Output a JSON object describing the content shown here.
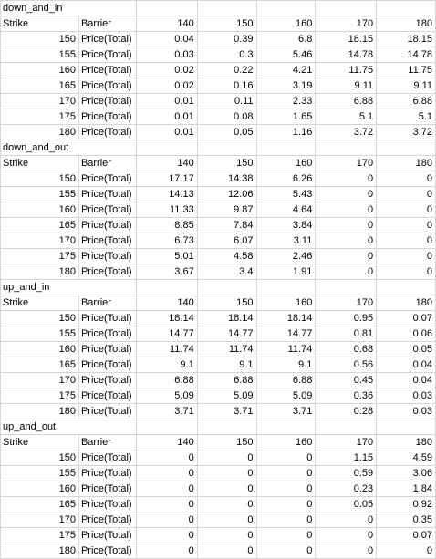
{
  "sections": [
    {
      "title": "down_and_in",
      "header": {
        "strike_label": "Strike",
        "barrier_label": "Barrier",
        "barriers": [
          "140",
          "150",
          "160",
          "170",
          "180"
        ]
      },
      "rows": [
        {
          "strike": "150",
          "label": "Price(Total)",
          "values": [
            "0.04",
            "0.39",
            "6.8",
            "18.15",
            "18.15"
          ]
        },
        {
          "strike": "155",
          "label": "Price(Total)",
          "values": [
            "0.03",
            "0.3",
            "5.46",
            "14.78",
            "14.78"
          ]
        },
        {
          "strike": "160",
          "label": "Price(Total)",
          "values": [
            "0.02",
            "0.22",
            "4.21",
            "11.75",
            "11.75"
          ]
        },
        {
          "strike": "165",
          "label": "Price(Total)",
          "values": [
            "0.02",
            "0.16",
            "3.19",
            "9.11",
            "9.11"
          ]
        },
        {
          "strike": "170",
          "label": "Price(Total)",
          "values": [
            "0.01",
            "0.11",
            "2.33",
            "6.88",
            "6.88"
          ]
        },
        {
          "strike": "175",
          "label": "Price(Total)",
          "values": [
            "0.01",
            "0.08",
            "1.65",
            "5.1",
            "5.1"
          ]
        },
        {
          "strike": "180",
          "label": "Price(Total)",
          "values": [
            "0.01",
            "0.05",
            "1.16",
            "3.72",
            "3.72"
          ]
        }
      ]
    },
    {
      "title": "down_and_out",
      "header": {
        "strike_label": "Strike",
        "barrier_label": "Barrier",
        "barriers": [
          "140",
          "150",
          "160",
          "170",
          "180"
        ]
      },
      "rows": [
        {
          "strike": "150",
          "label": "Price(Total)",
          "values": [
            "17.17",
            "14.38",
            "6.26",
            "0",
            "0"
          ]
        },
        {
          "strike": "155",
          "label": "Price(Total)",
          "values": [
            "14.13",
            "12.06",
            "5.43",
            "0",
            "0"
          ]
        },
        {
          "strike": "160",
          "label": "Price(Total)",
          "values": [
            "11.33",
            "9.87",
            "4.64",
            "0",
            "0"
          ]
        },
        {
          "strike": "165",
          "label": "Price(Total)",
          "values": [
            "8.85",
            "7.84",
            "3.84",
            "0",
            "0"
          ]
        },
        {
          "strike": "170",
          "label": "Price(Total)",
          "values": [
            "6.73",
            "6.07",
            "3.11",
            "0",
            "0"
          ]
        },
        {
          "strike": "175",
          "label": "Price(Total)",
          "values": [
            "5.01",
            "4.58",
            "2.46",
            "0",
            "0"
          ]
        },
        {
          "strike": "180",
          "label": "Price(Total)",
          "values": [
            "3.67",
            "3.4",
            "1.91",
            "0",
            "0"
          ]
        }
      ]
    },
    {
      "title": "up_and_in",
      "header": {
        "strike_label": "Strike",
        "barrier_label": "Barrier",
        "barriers": [
          "140",
          "150",
          "160",
          "170",
          "180"
        ]
      },
      "rows": [
        {
          "strike": "150",
          "label": "Price(Total)",
          "values": [
            "18.14",
            "18.14",
            "18.14",
            "0.95",
            "0.07"
          ]
        },
        {
          "strike": "155",
          "label": "Price(Total)",
          "values": [
            "14.77",
            "14.77",
            "14.77",
            "0.81",
            "0.06"
          ]
        },
        {
          "strike": "160",
          "label": "Price(Total)",
          "values": [
            "11.74",
            "11.74",
            "11.74",
            "0.68",
            "0.05"
          ]
        },
        {
          "strike": "165",
          "label": "Price(Total)",
          "values": [
            "9.1",
            "9.1",
            "9.1",
            "0.56",
            "0.04"
          ]
        },
        {
          "strike": "170",
          "label": "Price(Total)",
          "values": [
            "6.88",
            "6.88",
            "6.88",
            "0.45",
            "0.04"
          ]
        },
        {
          "strike": "175",
          "label": "Price(Total)",
          "values": [
            "5.09",
            "5.09",
            "5.09",
            "0.36",
            "0.03"
          ]
        },
        {
          "strike": "180",
          "label": "Price(Total)",
          "values": [
            "3.71",
            "3.71",
            "3.71",
            "0.28",
            "0.03"
          ]
        }
      ]
    },
    {
      "title": "up_and_out",
      "header": {
        "strike_label": "Strike",
        "barrier_label": "Barrier",
        "barriers": [
          "140",
          "150",
          "160",
          "170",
          "180"
        ]
      },
      "rows": [
        {
          "strike": "150",
          "label": "Price(Total)",
          "values": [
            "0",
            "0",
            "0",
            "1.15",
            "4.59"
          ]
        },
        {
          "strike": "155",
          "label": "Price(Total)",
          "values": [
            "0",
            "0",
            "0",
            "0.59",
            "3.06"
          ]
        },
        {
          "strike": "160",
          "label": "Price(Total)",
          "values": [
            "0",
            "0",
            "0",
            "0.23",
            "1.84"
          ]
        },
        {
          "strike": "165",
          "label": "Price(Total)",
          "values": [
            "0",
            "0",
            "0",
            "0.05",
            "0.92"
          ]
        },
        {
          "strike": "170",
          "label": "Price(Total)",
          "values": [
            "0",
            "0",
            "0",
            "0",
            "0.35"
          ]
        },
        {
          "strike": "175",
          "label": "Price(Total)",
          "values": [
            "0",
            "0",
            "0",
            "0",
            "0.07"
          ]
        },
        {
          "strike": "180",
          "label": "Price(Total)",
          "values": [
            "0",
            "0",
            "0",
            "0",
            "0"
          ]
        }
      ]
    }
  ]
}
